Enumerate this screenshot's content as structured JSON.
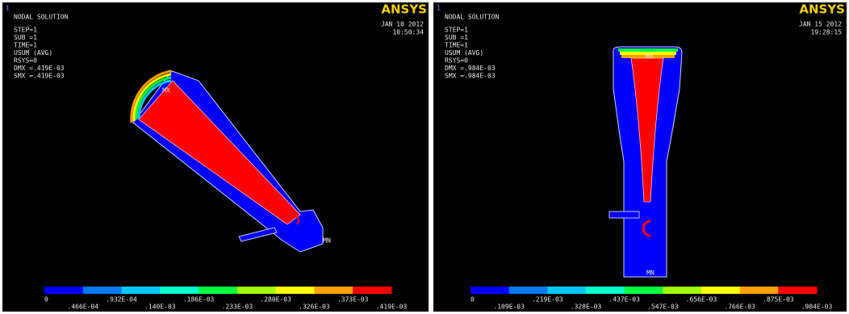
{
  "panels": [
    {
      "window_number": "1",
      "title": "NODAL SOLUTION",
      "info": [
        "STEP=1",
        "SUB =1",
        "TIME=1",
        "USUM      (AVG)",
        "RSYS=0",
        "DMX =.419E-03",
        "SMX =.419E-03"
      ],
      "logo": "ANSYS",
      "date": "JAN 10 2012",
      "time": "10:50:34",
      "markers": {
        "max": "MX",
        "min": "MN"
      },
      "legend": {
        "labels": [
          "0",
          ".466E-04",
          ".932E-04",
          ".140E-03",
          ".186E-03",
          ".233E-03",
          ".280E-03",
          ".326E-03",
          ".373E-03",
          ".419E-03"
        ]
      }
    },
    {
      "window_number": "1",
      "title": "NODAL SOLUTION",
      "info": [
        "STEP=1",
        "SUB =1",
        "TIME=1",
        "USUM      (AVG)",
        "RSYS=0",
        "DMX =.984E-03",
        "SMX =.984E-03"
      ],
      "logo": "ANSYS",
      "date": "JAN 15 2012",
      "time": "19:28:15",
      "markers": {
        "max": "MX",
        "min": "MN"
      },
      "legend": {
        "labels": [
          "0",
          ".109E-03",
          ".219E-03",
          ".328E-03",
          ".437E-03",
          ".547E-03",
          ".656E-03",
          ".766E-03",
          ".875E-03",
          ".984E-03"
        ]
      }
    }
  ],
  "legend_colors": [
    "#0000ff",
    "#0078ff",
    "#00c8ff",
    "#00ffc8",
    "#00ff3c",
    "#a0ff00",
    "#ffff00",
    "#ffa000",
    "#ff0000"
  ]
}
